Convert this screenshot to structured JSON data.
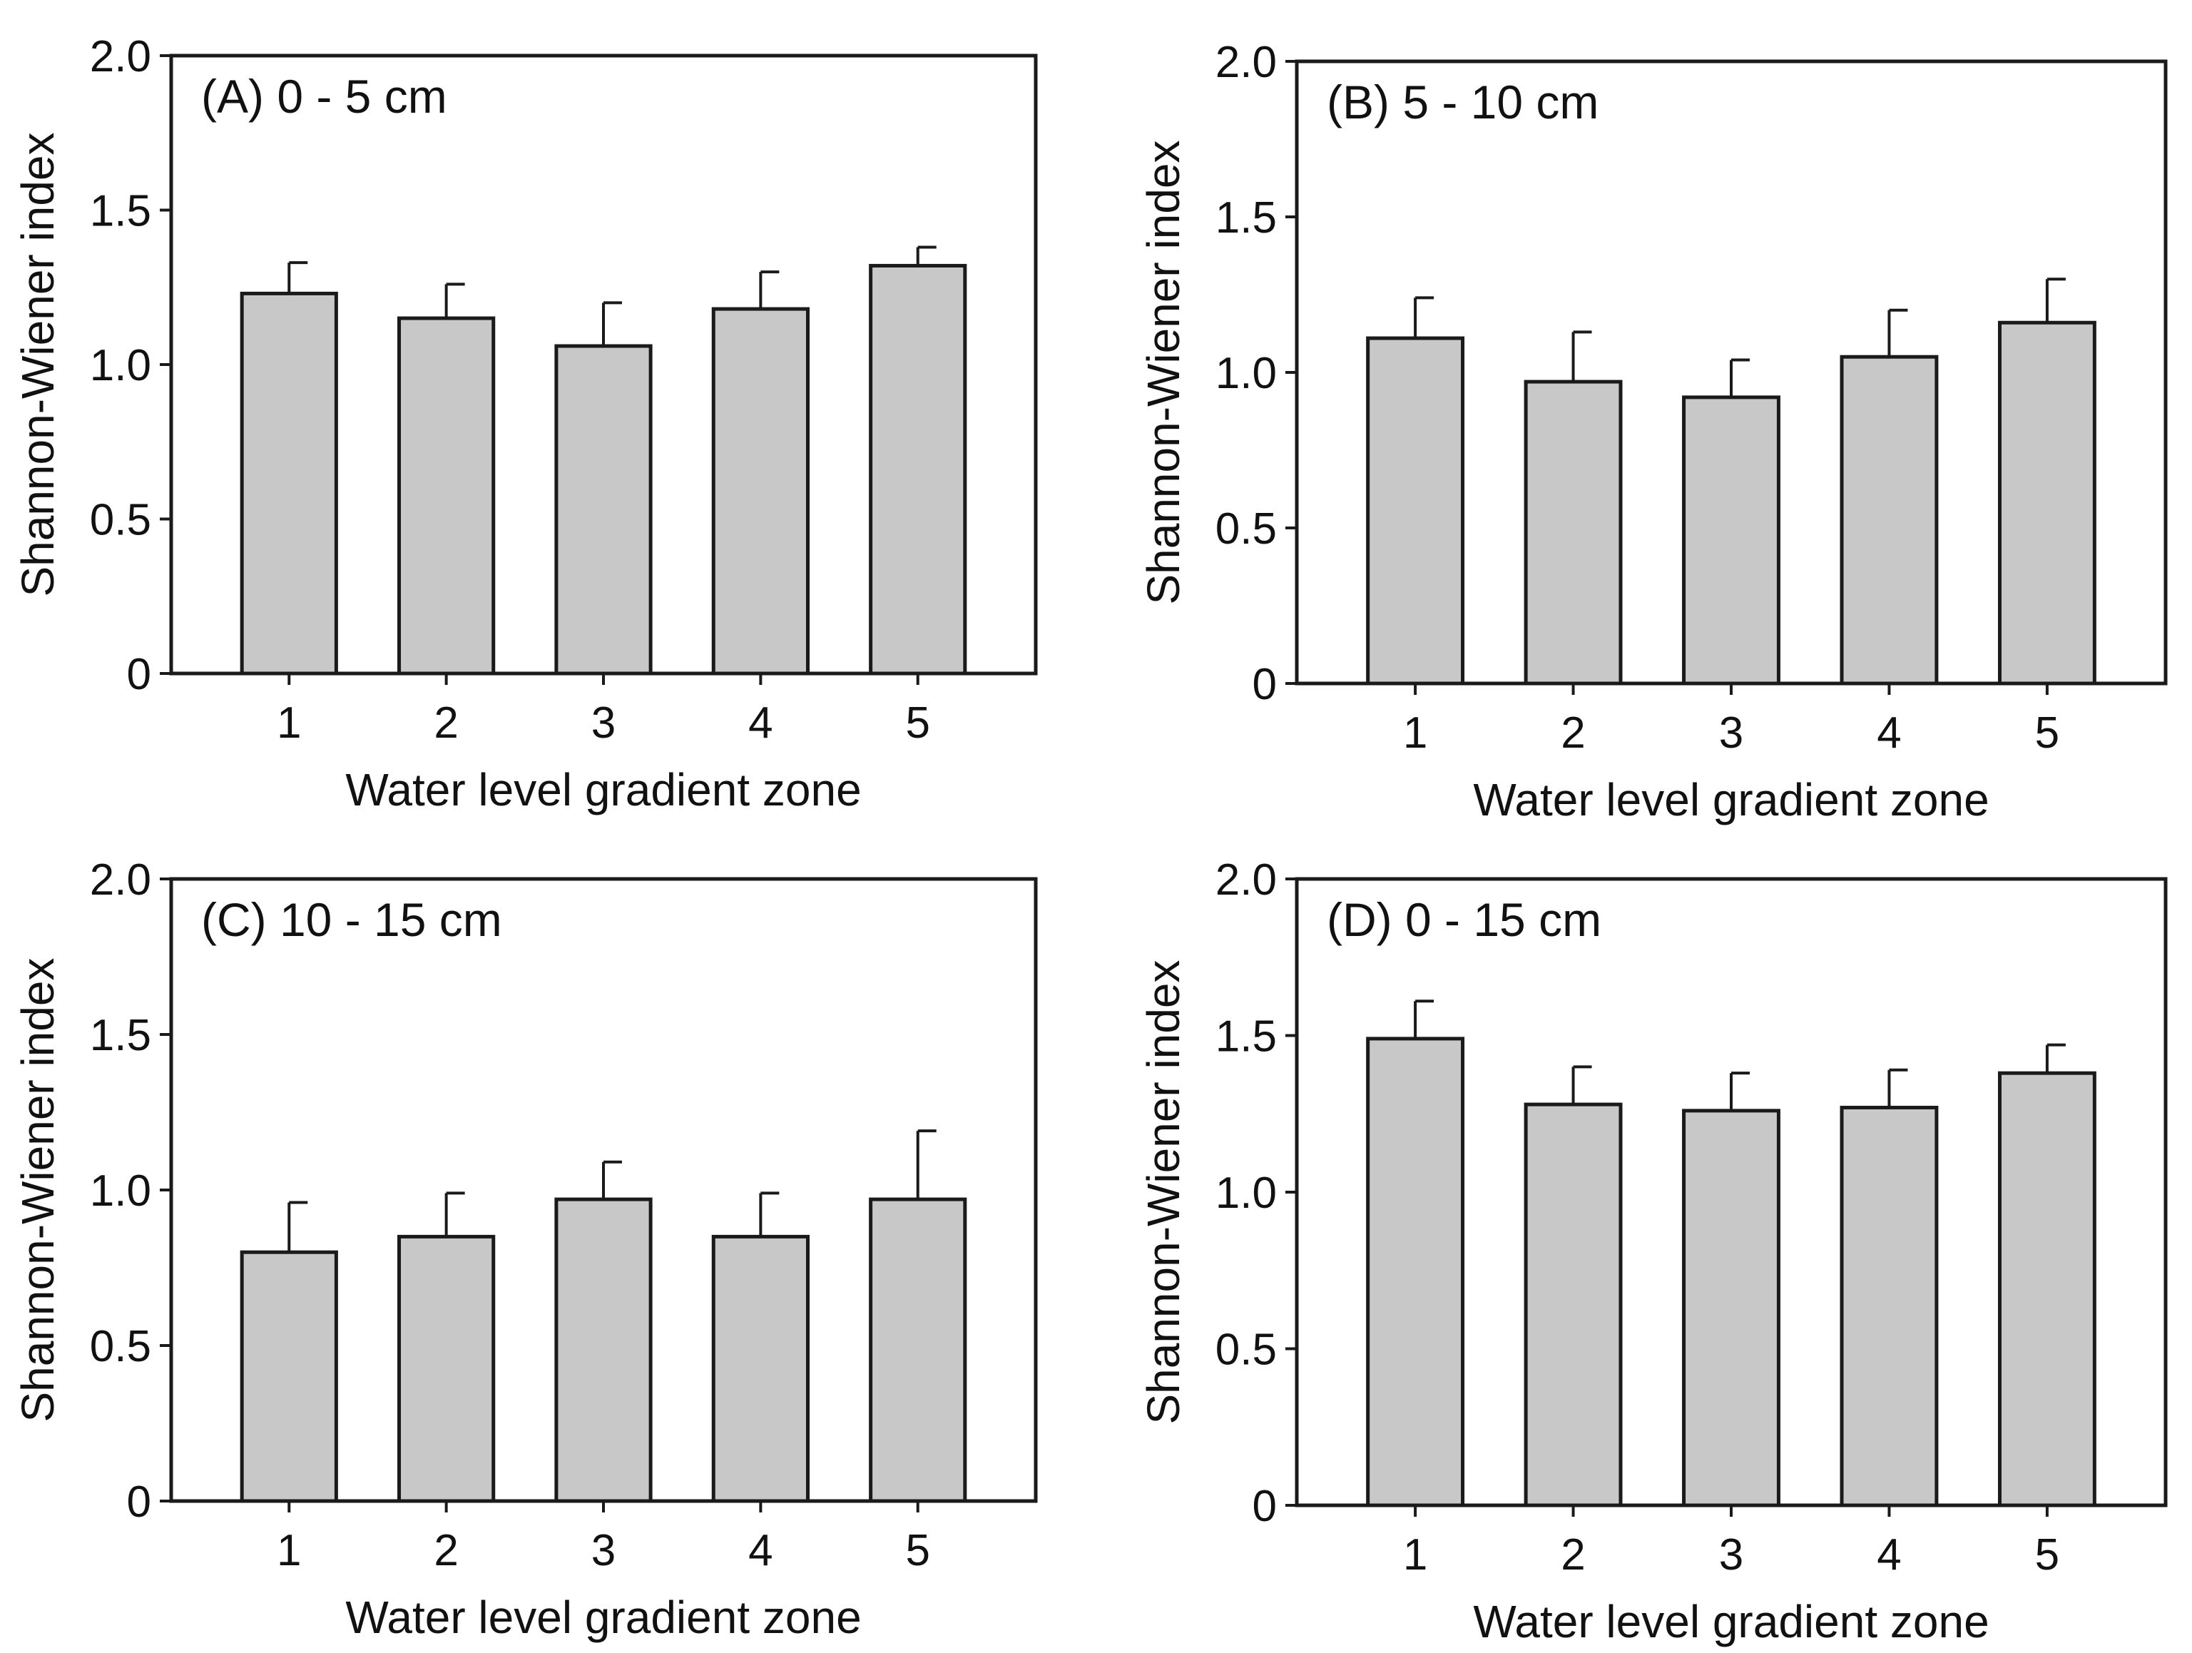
{
  "colors": {
    "bar_fill": "#c8c8c8",
    "stroke": "#1a1a1a",
    "background": "#ffffff"
  },
  "chart_data": [
    {
      "type": "bar",
      "title": "(A) 0 - 5 cm",
      "xlabel": "Water level gradient zone",
      "ylabel": "Shannon-Wiener index",
      "categories": [
        "1",
        "2",
        "3",
        "4",
        "5"
      ],
      "values": [
        1.23,
        1.15,
        1.06,
        1.18,
        1.32
      ],
      "errors": [
        0.1,
        0.11,
        0.14,
        0.12,
        0.06
      ],
      "ylim": [
        0,
        2.0
      ],
      "yticks": [
        "0",
        "0.5",
        "1.0",
        "1.5",
        "2.0"
      ],
      "grid": false,
      "error_bar_direction": "upper"
    },
    {
      "type": "bar",
      "title": "(B) 5 - 10 cm",
      "xlabel": "Water level gradient zone",
      "ylabel": "Shannon-Wiener index",
      "categories": [
        "1",
        "2",
        "3",
        "4",
        "5"
      ],
      "values": [
        1.11,
        0.97,
        0.92,
        1.05,
        1.16
      ],
      "errors": [
        0.13,
        0.16,
        0.12,
        0.15,
        0.14
      ],
      "ylim": [
        0,
        2.0
      ],
      "yticks": [
        "0",
        "0.5",
        "1.0",
        "1.5",
        "2.0"
      ],
      "grid": false,
      "error_bar_direction": "upper"
    },
    {
      "type": "bar",
      "title": "(C) 10 - 15 cm",
      "xlabel": "Water level gradient zone",
      "ylabel": "Shannon-Wiener index",
      "categories": [
        "1",
        "2",
        "3",
        "4",
        "5"
      ],
      "values": [
        0.8,
        0.85,
        0.97,
        0.85,
        0.97
      ],
      "errors": [
        0.16,
        0.14,
        0.12,
        0.14,
        0.22
      ],
      "ylim": [
        0,
        2.0
      ],
      "yticks": [
        "0",
        "0.5",
        "1.0",
        "1.5",
        "2.0"
      ],
      "grid": false,
      "error_bar_direction": "upper"
    },
    {
      "type": "bar",
      "title": "(D) 0 - 15 cm",
      "xlabel": "Water level gradient zone",
      "ylabel": "Shannon-Wiener index",
      "categories": [
        "1",
        "2",
        "3",
        "4",
        "5"
      ],
      "values": [
        1.49,
        1.28,
        1.26,
        1.27,
        1.38
      ],
      "errors": [
        0.12,
        0.12,
        0.12,
        0.12,
        0.09
      ],
      "ylim": [
        0,
        2.0
      ],
      "yticks": [
        "0",
        "0.5",
        "1.0",
        "1.5",
        "2.0"
      ],
      "grid": false,
      "error_bar_direction": "upper"
    }
  ]
}
